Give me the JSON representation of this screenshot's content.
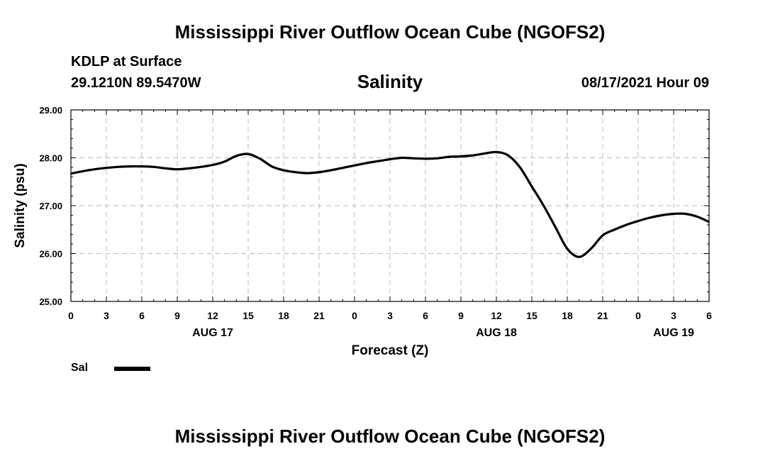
{
  "header": {
    "title": "Mississippi River Outflow Ocean Cube (NGOFS2)",
    "station": "KDLP at Surface",
    "coords": "29.1210N  89.5470W",
    "variable": "Salinity",
    "datetime": "08/17/2021 Hour 09"
  },
  "footer": {
    "title": "Mississippi River Outflow Ocean Cube (NGOFS2)"
  },
  "legend": {
    "label": "Sal",
    "color": "#000000"
  },
  "chart_data": {
    "type": "line",
    "title": "Salinity",
    "xlabel": "Forecast (Z)",
    "ylabel": "Salinity (psu)",
    "xlim": [
      0,
      54
    ],
    "ylim": [
      25,
      29
    ],
    "x_ticks": [
      0,
      3,
      6,
      9,
      12,
      15,
      18,
      21,
      24,
      27,
      30,
      33,
      36,
      39,
      42,
      45,
      48,
      51,
      54
    ],
    "x_tick_labels": [
      "0",
      "3",
      "6",
      "9",
      "12",
      "15",
      "18",
      "21",
      "0",
      "3",
      "6",
      "9",
      "12",
      "15",
      "18",
      "21",
      "0",
      "3",
      "6"
    ],
    "x_date_labels": [
      {
        "x": 12,
        "label": "AUG 17"
      },
      {
        "x": 36,
        "label": "AUG 18"
      },
      {
        "x": 51,
        "label": "AUG 19"
      }
    ],
    "y_ticks": [
      25,
      26,
      27,
      28,
      29
    ],
    "y_tick_labels": [
      "25.00",
      "26.00",
      "27.00",
      "28.00",
      "29.00"
    ],
    "grid": true,
    "series": [
      {
        "name": "Sal",
        "color": "#000000",
        "x": [
          0,
          1,
          2,
          3,
          4,
          5,
          6,
          7,
          8,
          9,
          10,
          11,
          12,
          13,
          14,
          15,
          16,
          17,
          18,
          19,
          20,
          21,
          22,
          23,
          24,
          25,
          26,
          27,
          28,
          29,
          30,
          31,
          32,
          33,
          34,
          35,
          36,
          37,
          38,
          39,
          40,
          41,
          42,
          43,
          44,
          45,
          46,
          47,
          48,
          49,
          50,
          51,
          52,
          53,
          54
        ],
        "y": [
          27.67,
          27.72,
          27.76,
          27.79,
          27.81,
          27.82,
          27.82,
          27.81,
          27.78,
          27.76,
          27.78,
          27.81,
          27.85,
          27.92,
          28.04,
          28.08,
          27.98,
          27.82,
          27.74,
          27.7,
          27.68,
          27.7,
          27.74,
          27.79,
          27.84,
          27.89,
          27.93,
          27.97,
          28.0,
          27.99,
          27.98,
          27.99,
          28.02,
          28.03,
          28.05,
          28.09,
          28.12,
          28.05,
          27.8,
          27.4,
          27.0,
          26.55,
          26.1,
          25.93,
          26.1,
          26.38,
          26.5,
          26.6,
          26.68,
          26.75,
          26.8,
          26.83,
          26.83,
          26.77,
          26.66
        ]
      }
    ]
  }
}
